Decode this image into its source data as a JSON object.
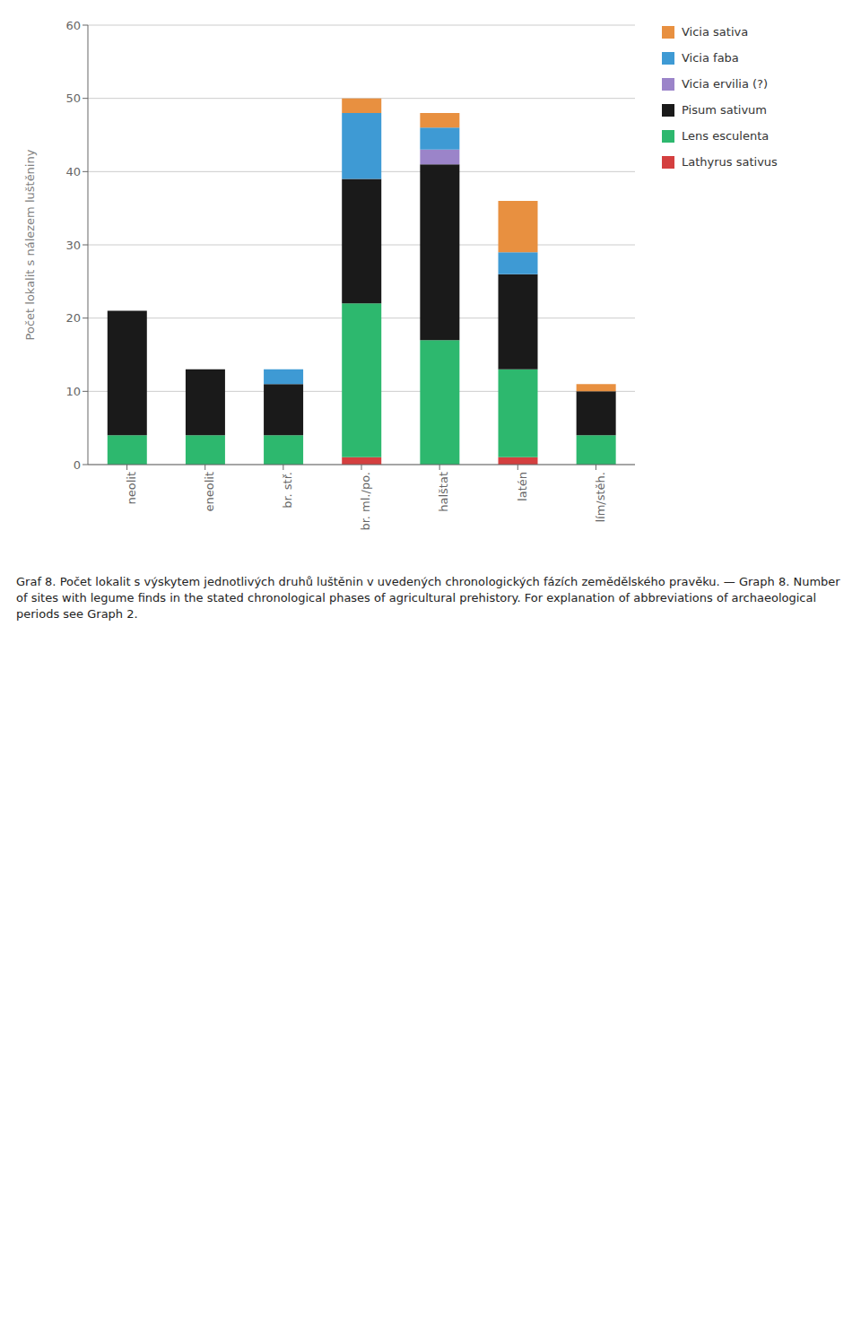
{
  "chart_data": {
    "type": "bar",
    "stacked": true,
    "title": "Graf 8. Počet lokalit s výskytem jednotlivých druhů luštěnin v uvedených chronologických fázích zemědělského pravěku. — Graph 8. Number of sites with legume finds in the stated chronological phases of agricultural prehistory. For explanation of abbreviations of archaeological periods see Graph 2.",
    "ylabel": "Počet lokalit s nálezem luštěniny",
    "categories": [
      "neolit",
      "eneolit",
      "br. stř.",
      "br. ml./po.",
      "halštat",
      "latén",
      "lím/stěh."
    ],
    "series": [
      {
        "name": "Lathyrus sativus",
        "color": "#d43f3f",
        "values": [
          0,
          0,
          0,
          1,
          0,
          1,
          0
        ]
      },
      {
        "name": "Lens esculenta",
        "color": "#2db86e",
        "values": [
          4,
          4,
          4,
          21,
          17,
          12,
          4
        ]
      },
      {
        "name": "Pisum sativum",
        "color": "#1a1a1a",
        "values": [
          17,
          9,
          7,
          17,
          24,
          13,
          6
        ]
      },
      {
        "name": "Vicia ervilia (?)",
        "color": "#9b84c9",
        "values": [
          0,
          0,
          0,
          0,
          2,
          0,
          0
        ]
      },
      {
        "name": "Vicia faba",
        "color": "#3e9ad4",
        "values": [
          0,
          0,
          2,
          9,
          3,
          3,
          0
        ]
      },
      {
        "name": "Vicia sativa",
        "color": "#e89040",
        "values": [
          0,
          0,
          0,
          2,
          2,
          7,
          1
        ]
      }
    ],
    "ylim": [
      0,
      60
    ],
    "yticks": [
      0,
      10,
      20,
      30,
      40,
      50,
      60
    ],
    "grid": true,
    "legend": "right"
  }
}
